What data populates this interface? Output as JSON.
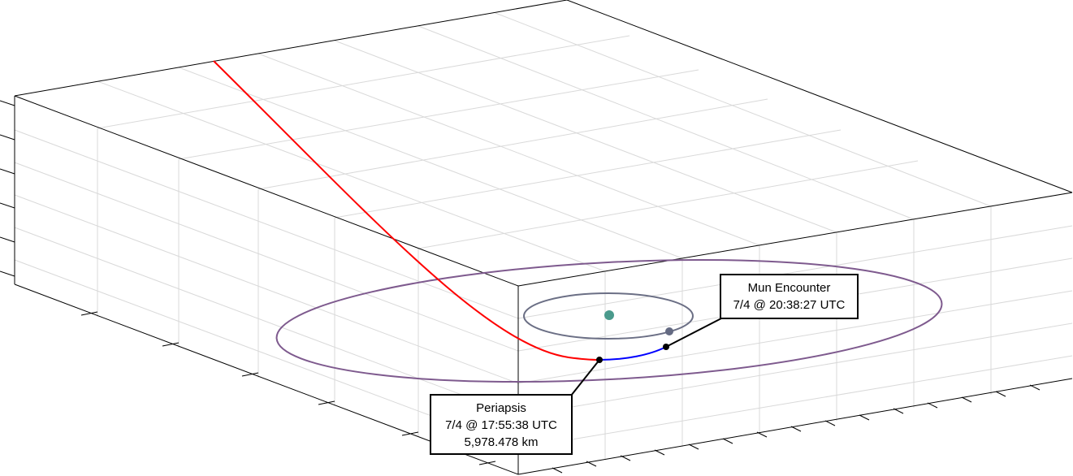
{
  "colors": {
    "background": "#ffffff",
    "axis_frame": "#000000",
    "grid": "#d9d9d9",
    "incoming_trajectory": "#ff0000",
    "transfer_arc": "#0000ff",
    "outer_orbit": "#7e5a8e",
    "inner_orbit": "#6b6f85",
    "central_body": "#4a9a8c",
    "moon": "#646a82",
    "marker": "#000000"
  },
  "annotations": {
    "periapsis": {
      "title": "Periapsis",
      "time": "7/4 @ 17:55:38 UTC",
      "altitude": "5,978.478 km"
    },
    "mun_encounter": {
      "title": "Mun Encounter",
      "time": "7/4 @ 20:38:27 UTC"
    }
  }
}
